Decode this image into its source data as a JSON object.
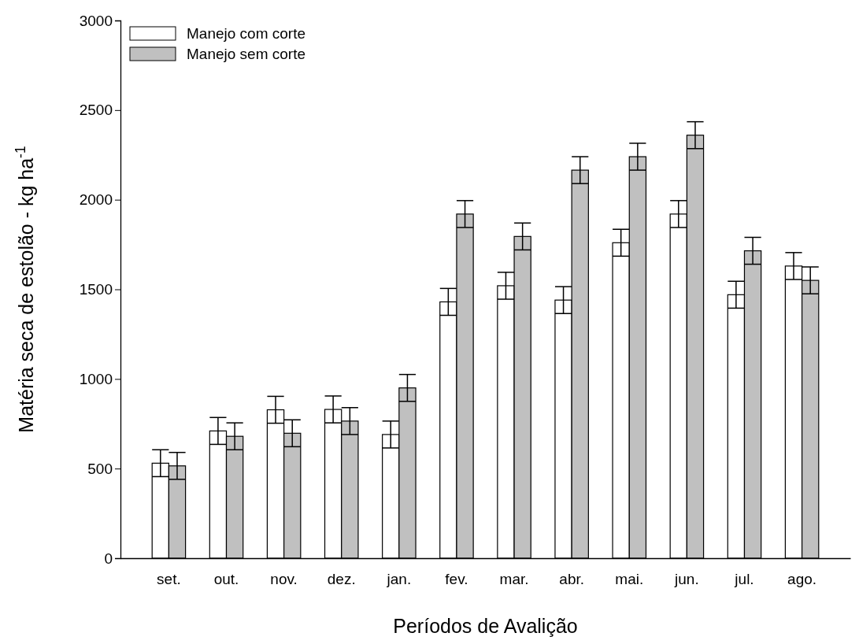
{
  "chart_data": {
    "type": "bar",
    "xlabel": "Períodos de Avalição",
    "ylabel": "Matéria seca de estolão - kg ha$^{-1}$",
    "categories": [
      "set.",
      "out.",
      "nov.",
      "dez.",
      "jan.",
      "fev.",
      "mar.",
      "abr.",
      "mai.",
      "jun.",
      "jul.",
      "ago."
    ],
    "series": [
      {
        "name": "Manejo com corte",
        "color": "#ffffff",
        "values": [
          530,
          710,
          828,
          830,
          690,
          1430,
          1520,
          1440,
          1760,
          1920,
          1470,
          1630
        ],
        "errors": [
          75,
          75,
          75,
          75,
          75,
          75,
          75,
          75,
          75,
          75,
          75,
          75
        ]
      },
      {
        "name": "Manejo sem corte",
        "color": "#c0c0c0",
        "values": [
          515,
          680,
          697,
          765,
          950,
          1920,
          1795,
          2165,
          2240,
          2360,
          1715,
          1550
        ],
        "errors": [
          75,
          75,
          75,
          75,
          75,
          75,
          75,
          75,
          75,
          75,
          75,
          75
        ]
      }
    ],
    "ylim": [
      0,
      3000
    ],
    "yticks": [
      0,
      500,
      1000,
      1500,
      2000,
      2500,
      3000
    ],
    "legend": "top left"
  }
}
